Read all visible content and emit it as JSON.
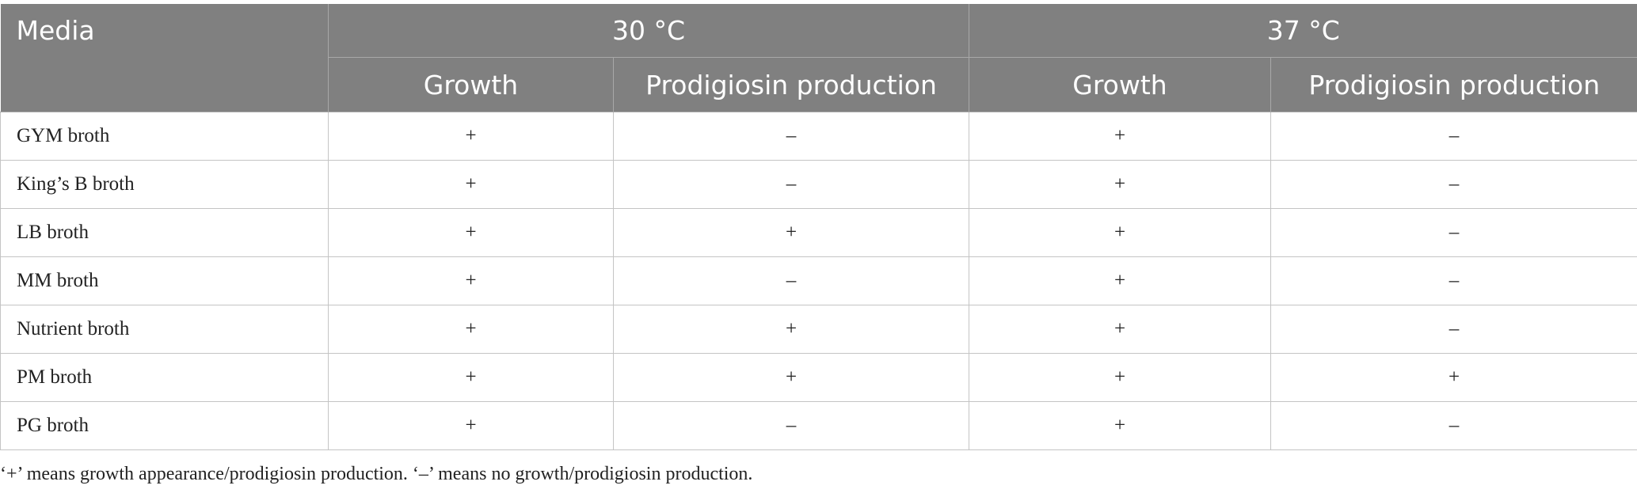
{
  "table": {
    "header": {
      "media": "Media",
      "groups": [
        "30 °C",
        "37 °C"
      ],
      "subheaders": [
        "Growth",
        "Prodigiosin production",
        "Growth",
        "Prodigiosin production"
      ]
    },
    "rows": [
      [
        "GYM broth",
        "+",
        "–",
        "+",
        "–"
      ],
      [
        "King’s B broth",
        "+",
        "–",
        "+",
        "–"
      ],
      [
        "LB broth",
        "+",
        "+",
        "+",
        "–"
      ],
      [
        "MM broth",
        "+",
        "–",
        "+",
        "–"
      ],
      [
        "Nutrient broth",
        "+",
        "+",
        "+",
        "–"
      ],
      [
        "PM broth",
        "+",
        "+",
        "+",
        "+"
      ],
      [
        "PG broth",
        "+",
        "–",
        "+",
        "–"
      ]
    ]
  },
  "footnote": "‘+’ means growth appearance/prodigiosin production. ‘–’ means no growth/prodigiosin production."
}
